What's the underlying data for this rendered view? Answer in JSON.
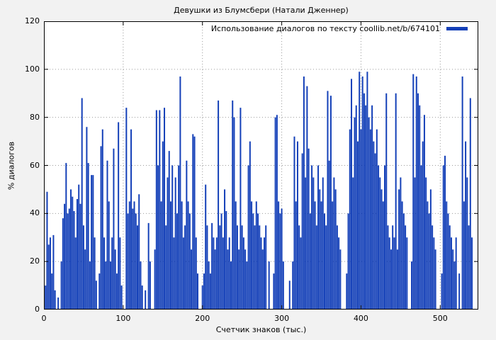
{
  "page": {
    "background": "#f2f2f2"
  },
  "title": "Девушки из Блумсбери (Натали Дженнер)",
  "legend": {
    "label": "Использование диалогов по тексту coollib.net/b/674101",
    "swatch_color": "#1440b8"
  },
  "axes": {
    "y_label": "% диалогов",
    "x_label": "Счетчик знаков (тыс.)",
    "y_ticks": [
      0,
      20,
      40,
      60,
      80,
      100,
      120
    ],
    "x_ticks": [
      0,
      100,
      200,
      300,
      400,
      500
    ]
  },
  "chart_data": {
    "type": "bar",
    "title": "Девушки из Блумсбери (Натали Дженнер)",
    "xlabel": "Счетчик знаков (тыс.)",
    "ylabel": "% диалогов",
    "xlim": [
      0,
      548
    ],
    "ylim": [
      0,
      120
    ],
    "grid": true,
    "legend_position": "top-right",
    "legend_label": "Использование диалогов по тексту coollib.net/b/674101",
    "bar_color": "#1440b8",
    "points": [
      [
        2,
        10
      ],
      [
        4,
        49
      ],
      [
        6,
        27
      ],
      [
        8,
        30
      ],
      [
        10,
        15
      ],
      [
        12,
        31
      ],
      [
        14,
        8
      ],
      [
        18,
        5
      ],
      [
        22,
        20
      ],
      [
        24,
        38
      ],
      [
        26,
        44
      ],
      [
        28,
        61
      ],
      [
        30,
        40
      ],
      [
        32,
        42
      ],
      [
        34,
        50
      ],
      [
        36,
        47
      ],
      [
        38,
        41
      ],
      [
        40,
        30
      ],
      [
        42,
        46
      ],
      [
        44,
        52
      ],
      [
        46,
        44
      ],
      [
        48,
        88
      ],
      [
        50,
        35
      ],
      [
        52,
        25
      ],
      [
        54,
        76
      ],
      [
        56,
        61
      ],
      [
        58,
        20
      ],
      [
        60,
        56
      ],
      [
        62,
        56
      ],
      [
        64,
        30
      ],
      [
        66,
        12
      ],
      [
        70,
        15
      ],
      [
        72,
        68
      ],
      [
        74,
        75
      ],
      [
        76,
        30
      ],
      [
        78,
        20
      ],
      [
        80,
        62
      ],
      [
        82,
        45
      ],
      [
        84,
        20
      ],
      [
        86,
        30
      ],
      [
        88,
        67
      ],
      [
        90,
        25
      ],
      [
        92,
        15
      ],
      [
        94,
        78
      ],
      [
        96,
        30
      ],
      [
        98,
        10
      ],
      [
        104,
        84
      ],
      [
        106,
        40
      ],
      [
        108,
        45
      ],
      [
        110,
        75
      ],
      [
        112,
        42
      ],
      [
        114,
        45
      ],
      [
        116,
        40
      ],
      [
        118,
        35
      ],
      [
        120,
        48
      ],
      [
        122,
        20
      ],
      [
        124,
        10
      ],
      [
        128,
        8
      ],
      [
        132,
        36
      ],
      [
        134,
        20
      ],
      [
        140,
        25
      ],
      [
        142,
        83
      ],
      [
        144,
        60
      ],
      [
        146,
        83
      ],
      [
        148,
        45
      ],
      [
        150,
        70
      ],
      [
        152,
        84
      ],
      [
        154,
        35
      ],
      [
        156,
        55
      ],
      [
        158,
        66
      ],
      [
        160,
        45
      ],
      [
        162,
        60
      ],
      [
        164,
        30
      ],
      [
        166,
        55
      ],
      [
        168,
        40
      ],
      [
        170,
        60
      ],
      [
        172,
        97
      ],
      [
        174,
        45
      ],
      [
        176,
        30
      ],
      [
        178,
        35
      ],
      [
        180,
        62
      ],
      [
        182,
        45
      ],
      [
        184,
        40
      ],
      [
        186,
        25
      ],
      [
        188,
        73
      ],
      [
        190,
        72
      ],
      [
        192,
        30
      ],
      [
        194,
        15
      ],
      [
        200,
        10
      ],
      [
        202,
        15
      ],
      [
        204,
        52
      ],
      [
        206,
        35
      ],
      [
        208,
        20
      ],
      [
        210,
        15
      ],
      [
        212,
        36
      ],
      [
        214,
        30
      ],
      [
        216,
        25
      ],
      [
        218,
        30
      ],
      [
        220,
        87
      ],
      [
        222,
        35
      ],
      [
        224,
        40
      ],
      [
        226,
        30
      ],
      [
        228,
        50
      ],
      [
        230,
        41
      ],
      [
        232,
        25
      ],
      [
        234,
        30
      ],
      [
        236,
        20
      ],
      [
        238,
        87
      ],
      [
        240,
        80
      ],
      [
        242,
        45
      ],
      [
        244,
        35
      ],
      [
        246,
        25
      ],
      [
        248,
        84
      ],
      [
        250,
        35
      ],
      [
        252,
        30
      ],
      [
        254,
        25
      ],
      [
        256,
        20
      ],
      [
        258,
        60
      ],
      [
        260,
        70
      ],
      [
        262,
        45
      ],
      [
        264,
        40
      ],
      [
        266,
        35
      ],
      [
        268,
        45
      ],
      [
        270,
        40
      ],
      [
        272,
        35
      ],
      [
        274,
        30
      ],
      [
        276,
        25
      ],
      [
        278,
        30
      ],
      [
        280,
        35
      ],
      [
        284,
        20
      ],
      [
        290,
        15
      ],
      [
        292,
        80
      ],
      [
        294,
        81
      ],
      [
        296,
        45
      ],
      [
        298,
        40
      ],
      [
        300,
        42
      ],
      [
        302,
        20
      ],
      [
        310,
        12
      ],
      [
        314,
        20
      ],
      [
        316,
        72
      ],
      [
        318,
        45
      ],
      [
        320,
        70
      ],
      [
        322,
        35
      ],
      [
        324,
        30
      ],
      [
        326,
        65
      ],
      [
        328,
        97
      ],
      [
        330,
        55
      ],
      [
        332,
        93
      ],
      [
        334,
        67
      ],
      [
        336,
        40
      ],
      [
        338,
        60
      ],
      [
        340,
        55
      ],
      [
        342,
        45
      ],
      [
        344,
        35
      ],
      [
        346,
        60
      ],
      [
        348,
        50
      ],
      [
        350,
        45
      ],
      [
        352,
        55
      ],
      [
        354,
        40
      ],
      [
        356,
        35
      ],
      [
        358,
        91
      ],
      [
        360,
        62
      ],
      [
        362,
        89
      ],
      [
        364,
        45
      ],
      [
        366,
        55
      ],
      [
        368,
        50
      ],
      [
        370,
        35
      ],
      [
        372,
        30
      ],
      [
        374,
        25
      ],
      [
        382,
        15
      ],
      [
        384,
        40
      ],
      [
        386,
        75
      ],
      [
        388,
        96
      ],
      [
        390,
        55
      ],
      [
        392,
        80
      ],
      [
        394,
        85
      ],
      [
        396,
        70
      ],
      [
        398,
        99
      ],
      [
        400,
        75
      ],
      [
        402,
        97
      ],
      [
        404,
        90
      ],
      [
        406,
        85
      ],
      [
        408,
        99
      ],
      [
        410,
        80
      ],
      [
        412,
        75
      ],
      [
        414,
        85
      ],
      [
        416,
        70
      ],
      [
        418,
        65
      ],
      [
        420,
        75
      ],
      [
        422,
        60
      ],
      [
        424,
        55
      ],
      [
        426,
        50
      ],
      [
        428,
        45
      ],
      [
        430,
        60
      ],
      [
        432,
        90
      ],
      [
        434,
        35
      ],
      [
        436,
        30
      ],
      [
        438,
        25
      ],
      [
        440,
        35
      ],
      [
        442,
        30
      ],
      [
        444,
        90
      ],
      [
        446,
        25
      ],
      [
        448,
        50
      ],
      [
        450,
        55
      ],
      [
        452,
        45
      ],
      [
        454,
        40
      ],
      [
        456,
        35
      ],
      [
        458,
        30
      ],
      [
        464,
        20
      ],
      [
        466,
        98
      ],
      [
        468,
        55
      ],
      [
        470,
        97
      ],
      [
        472,
        90
      ],
      [
        474,
        85
      ],
      [
        476,
        60
      ],
      [
        478,
        70
      ],
      [
        480,
        81
      ],
      [
        482,
        55
      ],
      [
        484,
        45
      ],
      [
        486,
        40
      ],
      [
        488,
        50
      ],
      [
        490,
        35
      ],
      [
        492,
        30
      ],
      [
        494,
        25
      ],
      [
        502,
        15
      ],
      [
        504,
        60
      ],
      [
        506,
        64
      ],
      [
        508,
        45
      ],
      [
        510,
        40
      ],
      [
        512,
        35
      ],
      [
        514,
        30
      ],
      [
        516,
        25
      ],
      [
        518,
        20
      ],
      [
        520,
        30
      ],
      [
        524,
        15
      ],
      [
        528,
        97
      ],
      [
        530,
        45
      ],
      [
        532,
        70
      ],
      [
        534,
        55
      ],
      [
        536,
        35
      ],
      [
        538,
        88
      ],
      [
        540,
        30
      ]
    ]
  }
}
